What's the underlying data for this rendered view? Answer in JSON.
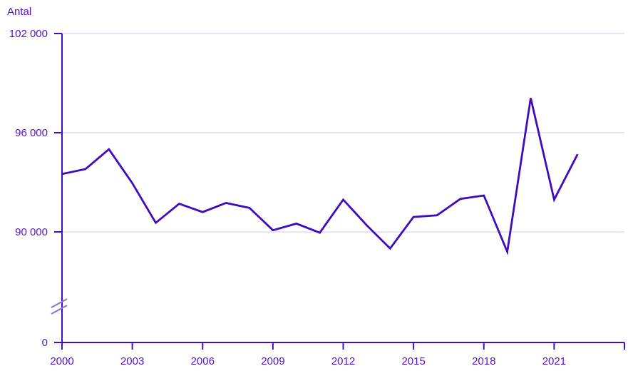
{
  "chart_data": {
    "type": "line",
    "title": "",
    "ylabel": "Antal",
    "xlabel": "",
    "legend_position": "none",
    "grid": "horizontal",
    "axis_break_on_y": true,
    "ylim": [
      88000,
      102000
    ],
    "x": [
      2000,
      2001,
      2002,
      2003,
      2004,
      2005,
      2006,
      2007,
      2008,
      2009,
      2010,
      2011,
      2012,
      2013,
      2014,
      2015,
      2016,
      2017,
      2018,
      2019,
      2020,
      2021,
      2022
    ],
    "series": [
      {
        "name": "Antal",
        "values": [
          93500,
          93800,
          95000,
          92950,
          90550,
          91700,
          91200,
          91750,
          91450,
          90100,
          90500,
          89950,
          91950,
          90400,
          89000,
          90900,
          91000,
          92000,
          92200,
          88800,
          98100,
          91950,
          94700
        ]
      }
    ],
    "y_ticks": [
      {
        "value": 0,
        "label": "0"
      },
      {
        "value": 90000,
        "label": "90 000"
      },
      {
        "value": 96000,
        "label": "96 000"
      },
      {
        "value": 102000,
        "label": "102 000"
      }
    ],
    "x_ticks": [
      {
        "year": 2000,
        "label": "2000"
      },
      {
        "year": 2003,
        "label": "2003"
      },
      {
        "year": 2006,
        "label": "2006"
      },
      {
        "year": 2009,
        "label": "2009"
      },
      {
        "year": 2012,
        "label": "2012"
      },
      {
        "year": 2015,
        "label": "2015"
      },
      {
        "year": 2018,
        "label": "2018"
      },
      {
        "year": 2021,
        "label": "2021"
      },
      {
        "year": 2024,
        "label": ""
      }
    ],
    "colors": {
      "line": "#3D0CBE",
      "axis": "#4310C0",
      "text": "#5215CF",
      "grid": "#DAD3F3",
      "break_mark": "#8272D2"
    }
  }
}
